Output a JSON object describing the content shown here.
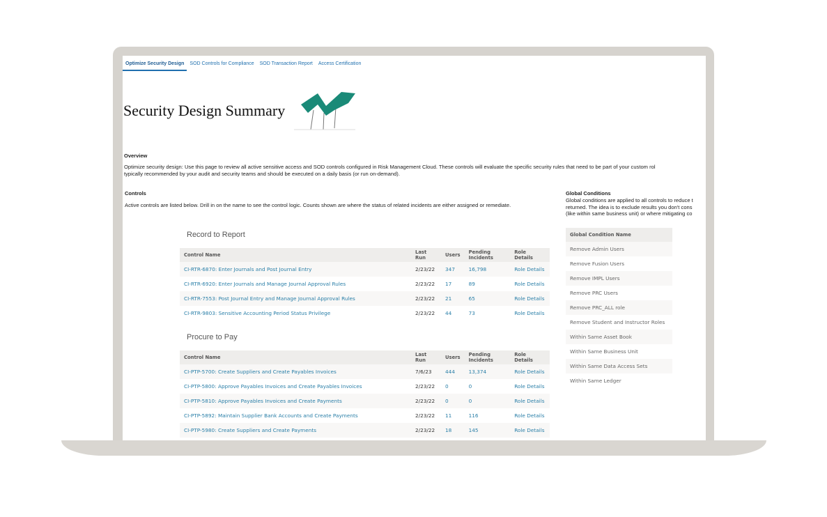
{
  "tabs": [
    "Optimize Security Design",
    "SOD Controls for Compliance",
    "SOD Transaction Report",
    "Access Certification"
  ],
  "title": "Security Design Summary",
  "overview": {
    "heading": "Overview",
    "lines": [
      "Optimize security design: Use this page to review all active sensitive access and SOD controls configured in Risk Management Cloud. These controls will evaluate the specific security rules that need to be part of your custom rol",
      "typically recommended by your audit and security teams and should be executed on a daily basis (or run on-demand)."
    ]
  },
  "controls": {
    "heading": "Controls",
    "text": "Active controls are listed below. Drill in on the name to see the control logic. Counts shown are where the status of related incidents are either assigned or remediate."
  },
  "columns": [
    "Control Name",
    "Last Run",
    "Users",
    "Pending Incidents",
    "Role Details"
  ],
  "sections": [
    {
      "title": "Record to Report",
      "rows": [
        [
          "CI-RTR-6870: Enter Journals and Post Journal Entry",
          "2/23/22",
          "347",
          "16,798",
          "Role Details"
        ],
        [
          "CI-RTR-6920: Enter Journals and Manage Journal Approval Rules",
          "2/23/22",
          "17",
          "89",
          "Role Details"
        ],
        [
          "CI-RTR-7553: Post Journal Entry and Manage Journal Approval Rules",
          "2/23/22",
          "21",
          "65",
          "Role Details"
        ],
        [
          "CI-RTR-9803: Sensitive Accounting Period Status Privilege",
          "2/23/22",
          "44",
          "73",
          "Role Details"
        ]
      ]
    },
    {
      "title": "Procure to Pay",
      "rows": [
        [
          "CI-PTP-5700: Create Suppliers and Create Payables Invoices",
          "7/6/23",
          "444",
          "13,374",
          "Role Details"
        ],
        [
          "CI-PTP-5800: Approve Payables Invoices and Create Payables Invoices",
          "2/23/22",
          "0",
          "0",
          "Role Details"
        ],
        [
          "CI-PTP-5810: Approve Payables Invoices and Create Payments",
          "2/23/22",
          "0",
          "0",
          "Role Details"
        ],
        [
          "CI-PTP-5892: Maintain Supplier Bank Accounts and Create Payments",
          "2/23/22",
          "11",
          "116",
          "Role Details"
        ],
        [
          "CI-PTP-5980: Create Suppliers and Create Payments",
          "2/23/22",
          "18",
          "145",
          "Role Details"
        ]
      ]
    }
  ],
  "global": {
    "heading": "Global Conditions",
    "lines": [
      "Global conditions are applied to all controls to reduce t",
      "returned. The idea is to exclude results you don't cons",
      "(like within same business unit) or where mitigating co"
    ],
    "column": "Global Condition Name",
    "items": [
      "Remove Admin Users",
      "Remove Fusion Users",
      "Remove IMPL Users",
      "Remove PRC Users",
      "Remove PRC_ALL role",
      "Remove Student and Instructor Roles",
      "Within Same Asset Book",
      "Within Same Business Unit",
      "Within Same Data Access Sets",
      "Within Same Ledger"
    ]
  },
  "colors": {
    "link": "#2a7fa8",
    "tab": "#1f6fae",
    "tree": "#1a8a78"
  }
}
